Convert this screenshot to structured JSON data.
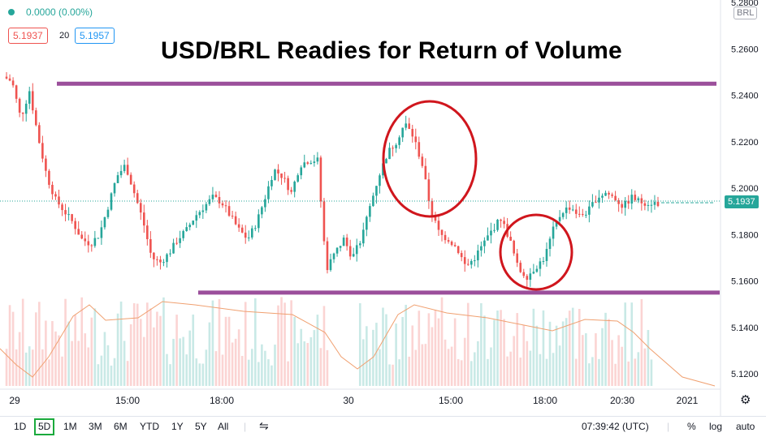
{
  "header": {
    "change": "0.0000 (0.00%)",
    "bid": "5.1937",
    "spread": "20",
    "ask": "5.1957"
  },
  "title": "USD/BRL Readies for Return of Volume",
  "currency_badge": "BRL",
  "last_price_label": "5.1937",
  "bottom_bar": {
    "ranges": [
      "1D",
      "5D",
      "1M",
      "3M",
      "6M",
      "YTD",
      "1Y",
      "5Y",
      "All"
    ],
    "selected_range": "5D",
    "time": "07:39:42 (UTC)",
    "percent": "%",
    "log": "log",
    "auto": "auto"
  },
  "colors": {
    "up": "#26a69a",
    "down": "#ef5350",
    "annotation_line": "#9b4f9b",
    "circle": "#d0161d",
    "ma_line": "#f0a070"
  },
  "chart_data": {
    "type": "candlestick",
    "title": "USD/BRL Readies for Return of Volume",
    "y_ticks": [
      "5.2800",
      "5.2600",
      "5.2400",
      "5.2200",
      "5.2000",
      "5.1800",
      "5.1600",
      "5.1400",
      "5.1200"
    ],
    "x_ticks": [
      "29",
      "15:00",
      "18:00",
      "30",
      "15:00",
      "18:00",
      "20:30",
      "2021"
    ],
    "ylim": [
      5.11,
      5.28
    ],
    "last_price": 5.1937,
    "horizontal_lines": [
      5.245,
      5.155
    ],
    "close_path": [
      5.248,
      5.246,
      5.23,
      5.242,
      5.222,
      5.205,
      5.195,
      5.19,
      5.185,
      5.178,
      5.176,
      5.18,
      5.192,
      5.205,
      5.21,
      5.198,
      5.186,
      5.17,
      5.168,
      5.172,
      5.178,
      5.182,
      5.188,
      5.192,
      5.196,
      5.194,
      5.188,
      5.182,
      5.178,
      5.185,
      5.196,
      5.208,
      5.205,
      5.198,
      5.21,
      5.212,
      5.212,
      5.165,
      5.172,
      5.178,
      5.17,
      5.178,
      5.192,
      5.205,
      5.215,
      5.22,
      5.228,
      5.222,
      5.21,
      5.19,
      5.18,
      5.178,
      5.174,
      5.166,
      5.17,
      5.176,
      5.182,
      5.187,
      5.178,
      5.165,
      5.162,
      5.166,
      5.17,
      5.182,
      5.19,
      5.192,
      5.188,
      5.19,
      5.196,
      5.198,
      5.196,
      5.192,
      5.196,
      5.194,
      5.1937,
      5.1937
    ]
  }
}
